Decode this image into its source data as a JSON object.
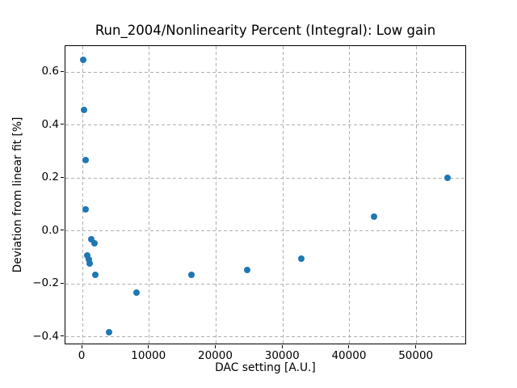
{
  "chart_data": {
    "type": "scatter",
    "title": "Run_2004/Nonlinearity Percent (Integral): Low gain",
    "xlabel": "DAC setting [A.U.]",
    "ylabel": "Deviation from linear fit [%]",
    "xlim": [
      -2540,
      57530
    ],
    "ylim": [
      -0.431,
      0.699
    ],
    "grid": true,
    "grid_linestyle": "dashed",
    "grid_color": "#b0b0b0",
    "background_color": "#ffffff",
    "marker_color": "#1f77b4",
    "marker_size_px": 8,
    "legend": "none",
    "xticks": {
      "values": [
        0,
        10000,
        20000,
        30000,
        40000,
        50000
      ],
      "labels": [
        "0",
        "10000",
        "20000",
        "30000",
        "40000",
        "50000"
      ]
    },
    "yticks": {
      "values": [
        0.6,
        0.4,
        0.2,
        0.0,
        -0.2,
        -0.4
      ],
      "labels": [
        "0.6",
        "0.4",
        "0.2",
        "0.0",
        "−0.2",
        "−0.4"
      ]
    },
    "points": [
      {
        "x": 240,
        "y": 0.645
      },
      {
        "x": 330,
        "y": 0.455
      },
      {
        "x": 570,
        "y": 0.265
      },
      {
        "x": 570,
        "y": 0.078
      },
      {
        "x": 880,
        "y": -0.095
      },
      {
        "x": 1050,
        "y": -0.11
      },
      {
        "x": 1210,
        "y": -0.125
      },
      {
        "x": 1490,
        "y": -0.035
      },
      {
        "x": 1930,
        "y": -0.05
      },
      {
        "x": 2090,
        "y": -0.167
      },
      {
        "x": 4110,
        "y": -0.385
      },
      {
        "x": 8220,
        "y": -0.235
      },
      {
        "x": 16480,
        "y": -0.167
      },
      {
        "x": 24750,
        "y": -0.151
      },
      {
        "x": 32930,
        "y": -0.106
      },
      {
        "x": 43810,
        "y": 0.053
      },
      {
        "x": 54780,
        "y": 0.198
      }
    ]
  }
}
